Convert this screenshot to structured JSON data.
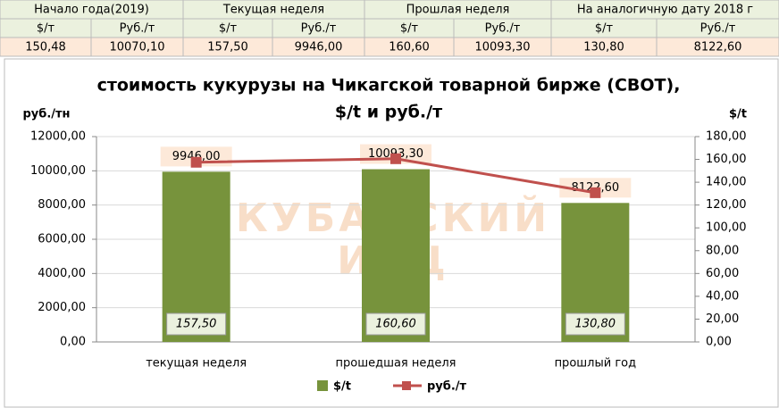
{
  "table": {
    "header": [
      "Начало года(2019)",
      "Текущая неделя",
      "Прошлая неделя",
      "На аналогичную дату 2018 г"
    ],
    "subheader": [
      "$/т",
      "Руб./т",
      "$/т",
      "Руб./т",
      "$/т",
      "Руб./т",
      "$/т",
      "Руб./т"
    ],
    "rows": [
      [
        "150,48",
        "10070,10",
        "157,50",
        "9946,00",
        "160,60",
        "10093,30",
        "130,80",
        "8122,60"
      ]
    ]
  },
  "chart_data": {
    "type": "bar-line",
    "title": "стоимость кукурузы на Чикагской товарной бирже (CBOT),",
    "subtitle": "$/t и руб./т",
    "y_label": "руб./тн",
    "y2_label": "$/t",
    "watermark": [
      "КУБАНСКИЙ",
      "ИКЦ"
    ],
    "categories": [
      "текущая неделя",
      "прошедшая неделя",
      "прошлый год"
    ],
    "series": [
      {
        "name": "$/t",
        "color": "#77933c",
        "type": "bar",
        "values": [
          9946,
          10093.3,
          8122.6
        ],
        "value_labels": [
          "9946,00",
          "10093,30",
          "8122,60"
        ]
      },
      {
        "name": "руб./т",
        "color": "#c0504d",
        "type": "line",
        "axis": "y2",
        "values": [
          157.5,
          160.6,
          130.8
        ],
        "value_labels": [
          "157,50",
          "160,60",
          "130,80"
        ]
      }
    ],
    "ylim": [
      0,
      12000
    ],
    "yticks": [
      {
        "value": 0,
        "label": "0,00"
      },
      {
        "value": 2000,
        "label": "2000,00"
      },
      {
        "value": 4000,
        "label": "4000,00"
      },
      {
        "value": 6000,
        "label": "6000,00"
      },
      {
        "value": 8000,
        "label": "8000,00"
      },
      {
        "value": 10000,
        "label": "10000,00"
      },
      {
        "value": 12000,
        "label": "12000,00"
      }
    ],
    "y2lim": [
      0,
      180
    ],
    "y2ticks": [
      {
        "value": 0,
        "label": "0,00"
      },
      {
        "value": 20,
        "label": "20,00"
      },
      {
        "value": 40,
        "label": "40,00"
      },
      {
        "value": 60,
        "label": "60,00"
      },
      {
        "value": 80,
        "label": "80,00"
      },
      {
        "value": 100,
        "label": "100,00"
      },
      {
        "value": 120,
        "label": "120,00"
      },
      {
        "value": 140,
        "label": "140,00"
      },
      {
        "value": 160,
        "label": "160,00"
      },
      {
        "value": 180,
        "label": "180,00"
      }
    ],
    "grid": true
  }
}
